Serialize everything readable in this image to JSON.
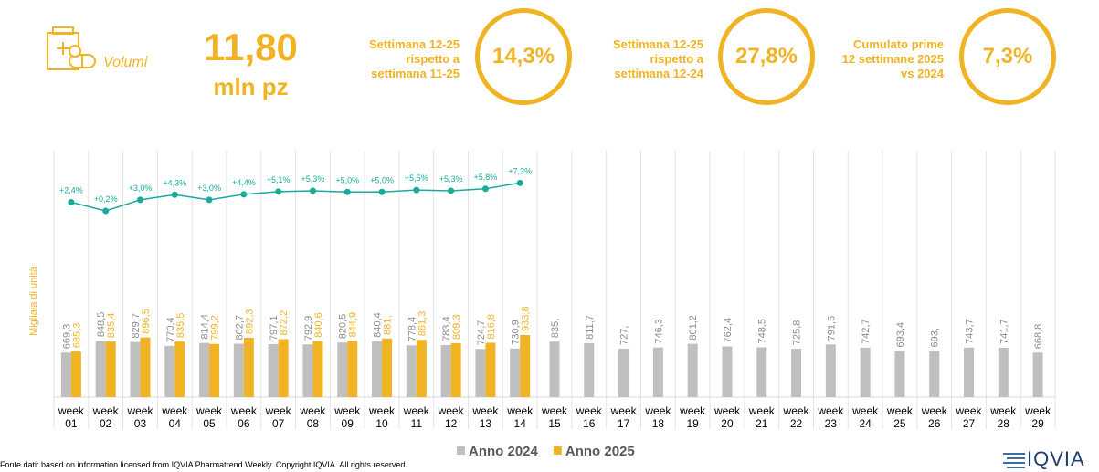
{
  "header": {
    "section": "Volumi",
    "total_value": "11,80",
    "total_unit": "mln pz",
    "kpis": [
      {
        "label": "Settimana 12-25 rispetto a settimana 11-25",
        "value": "14,3%"
      },
      {
        "label": "Settimana 12-25 rispetto a settimana 12-24",
        "value": "27,8%"
      },
      {
        "label": "Cumulato prime 12 settimane 2025 vs 2024",
        "value": "7,3%"
      }
    ]
  },
  "chart_data": {
    "type": "bar",
    "y_label": "Migliaia di unità",
    "categories": [
      "week 01",
      "week 02",
      "week 03",
      "week 04",
      "week 05",
      "week 06",
      "week 07",
      "week 08",
      "week 09",
      "week 10",
      "week 11",
      "week 12",
      "week 13",
      "week 14",
      "week 15",
      "week 16",
      "week 17",
      "week 18",
      "week 19",
      "week 20",
      "week 21",
      "week 22",
      "week 23",
      "week 24",
      "week 25",
      "week 26",
      "week 27",
      "week 28",
      "week 29"
    ],
    "ylim": [
      0,
      3500
    ],
    "y2lim": [
      -47,
      12
    ],
    "series": [
      {
        "name": "Anno 2024",
        "color": "#bfbfbf",
        "values": [
          669.3,
          848.5,
          829.7,
          770.4,
          814.4,
          802.7,
          797.1,
          792.9,
          820.5,
          840.4,
          778.4,
          783.4,
          724.7,
          730.9,
          835,
          811.7,
          727,
          746.3,
          801.2,
          762.4,
          748.5,
          725.8,
          791.5,
          742.7,
          693.4,
          693,
          743.7,
          741.7,
          668.8
        ],
        "value_labels": [
          "669,3",
          "848,5",
          "829,7",
          "770,4",
          "814,4",
          "802,7",
          "797,1",
          "792,9",
          "820,5",
          "840,4",
          "778,4",
          "783,4",
          "724,7",
          "730,9",
          "835,",
          "811,7",
          "727,",
          "746,3",
          "801,2",
          "762,4",
          "748,5",
          "725,8",
          "791,5",
          "742,7",
          "693,4",
          "693,",
          "743,7",
          "741,7",
          "668,8"
        ]
      },
      {
        "name": "Anno 2025",
        "color": "#f0b323",
        "values": [
          685.3,
          835.4,
          896.5,
          835.5,
          799.2,
          892.3,
          872.2,
          840.6,
          844.9,
          881,
          861.3,
          809.3,
          816.8,
          933.8,
          null,
          null,
          null,
          null,
          null,
          null,
          null,
          null,
          null,
          null,
          null,
          null,
          null,
          null,
          null
        ],
        "value_labels": [
          "685,3",
          "835,4",
          "896,5",
          "835,5",
          "799,2",
          "892,3",
          "872,2",
          "840,6",
          "844,9",
          "881,",
          "861,3",
          "809,3",
          "816,8",
          "933,8",
          null,
          null,
          null,
          null,
          null,
          null,
          null,
          null,
          null,
          null,
          null,
          null,
          null,
          null,
          null
        ]
      },
      {
        "type": "line",
        "color": "#1aaa9a",
        "axis": "y2",
        "values": [
          2.4,
          0.2,
          3.0,
          4.3,
          3.0,
          4.4,
          5.1,
          5.3,
          5.0,
          5.0,
          5.5,
          5.3,
          5.8,
          7.3,
          null,
          null,
          null,
          null,
          null,
          null,
          null,
          null,
          null,
          null,
          null,
          null,
          null,
          null,
          null
        ],
        "value_labels": [
          "+2,4%",
          "+0,2%",
          "+3,0%",
          "+4,3%",
          "+3,0%",
          "+4,4%",
          "+5,1%",
          "+5,3%",
          "+5,0%",
          "+5,0%",
          "+5,5%",
          "+5,3%",
          "+5,8%",
          "+7,3%",
          null,
          null,
          null,
          null,
          null,
          null,
          null,
          null,
          null,
          null,
          null,
          null,
          null,
          null,
          null
        ]
      }
    ]
  },
  "footer": {
    "source": "Fonte dati: based on information licensed from IQVIA Pharmatrend Weekly. Copyright IQVIA. All rights reserved.",
    "logo": "IQVIA"
  }
}
